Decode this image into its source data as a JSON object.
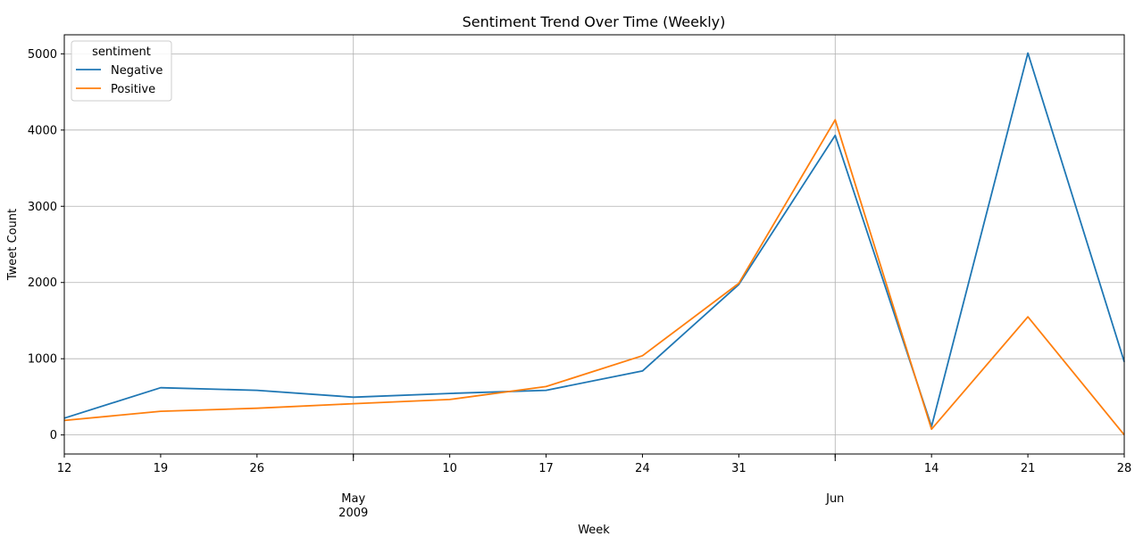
{
  "chart_data": {
    "type": "line",
    "title": "Sentiment Trend Over Time (Weekly)",
    "xlabel": "Week",
    "ylabel": "Tweet Count",
    "x": [
      "2009-04-12",
      "2009-04-19",
      "2009-04-26",
      "2009-05-03",
      "2009-05-10",
      "2009-05-17",
      "2009-05-24",
      "2009-05-31",
      "2009-06-07",
      "2009-06-14",
      "2009-06-21",
      "2009-06-28"
    ],
    "x_tick_labels": [
      "12",
      "19",
      "26",
      "",
      "10",
      "17",
      "24",
      "31",
      "",
      "14",
      "21",
      "28"
    ],
    "x_major_labels": [
      {
        "at": "2009-05-03",
        "lines": [
          "May",
          "2009"
        ]
      },
      {
        "at": "2009-06-07",
        "lines": [
          "Jun"
        ]
      }
    ],
    "ylim": [
      -250,
      5250
    ],
    "y_ticks": [
      0,
      1000,
      2000,
      3000,
      4000,
      5000
    ],
    "grid": true,
    "legend": {
      "title": "sentiment",
      "placement": "top-left"
    },
    "series": [
      {
        "name": "Negative",
        "color": "#1f77b4",
        "values": [
          220,
          620,
          585,
          495,
          545,
          585,
          840,
          1975,
          3930,
          110,
          5010,
          960
        ]
      },
      {
        "name": "Positive",
        "color": "#ff7f0e",
        "values": [
          190,
          310,
          350,
          410,
          465,
          635,
          1040,
          1990,
          4135,
          75,
          1550,
          0
        ]
      }
    ]
  }
}
